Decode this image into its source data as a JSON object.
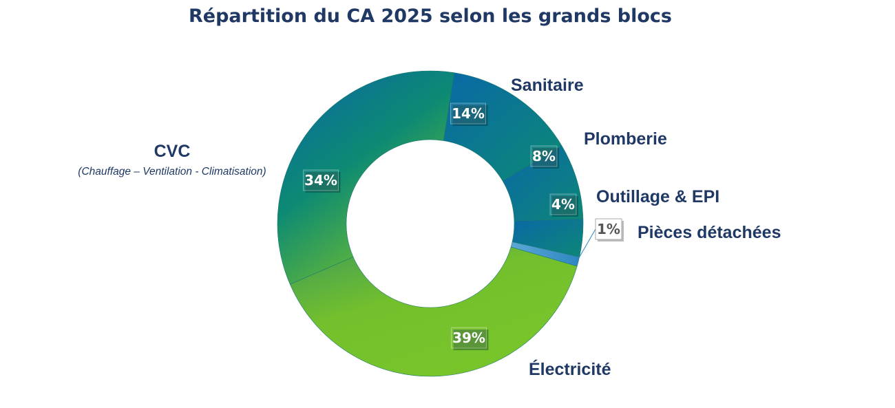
{
  "colors": {
    "title": "#1f3864",
    "labels": "#1f3864",
    "blue": "#0a6aa8",
    "teal": "#0a8a7a",
    "green": "#76c22c",
    "box_text": "#ffffff",
    "small_box_text": "#555555"
  },
  "chart_data": {
    "type": "pie",
    "variant": "donut",
    "title": "Répartition du CA 2025 selon les grands blocs",
    "legend": "none",
    "slices": [
      {
        "name": "Sanitaire",
        "value": 14,
        "label": "14%"
      },
      {
        "name": "Plomberie",
        "value": 8,
        "label": "8%"
      },
      {
        "name": "Outillage & EPI",
        "value": 4,
        "label": "4%"
      },
      {
        "name": "Pièces détachées",
        "value": 1,
        "label": "1%"
      },
      {
        "name": "Électricité",
        "value": 39,
        "label": "39%"
      },
      {
        "name": "CVC",
        "subtitle": "(Chauffage – Ventilation - Climatisation)",
        "value": 34,
        "label": "34%"
      }
    ]
  }
}
